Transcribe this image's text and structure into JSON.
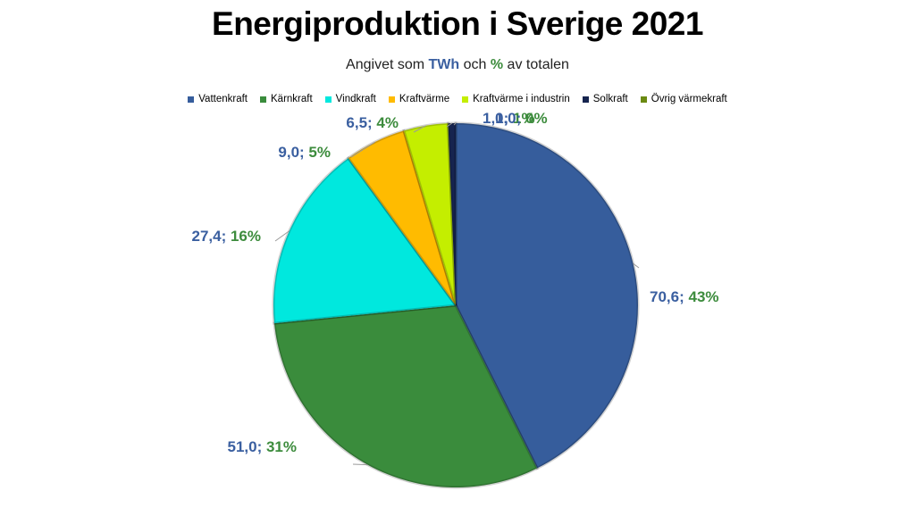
{
  "title": "Energiproduktion i Sverige 2021",
  "subtitle": {
    "prefix": "Angivet som ",
    "unit": "TWh",
    "middle": " och ",
    "pct": "%",
    "suffix": " av totalen"
  },
  "colors": {
    "value_label": "#3a5fa0",
    "pct_label": "#3d8c3d"
  },
  "chart_data": {
    "type": "pie",
    "title": "Energiproduktion i Sverige 2021",
    "subtitle": "Angivet som TWh och % av totalen",
    "legend_position": "top",
    "slices": [
      {
        "name": "Vattenkraft",
        "value": 70.6,
        "percent": 43,
        "label": "70,6",
        "pct_label": "43%",
        "color": "#365d9c"
      },
      {
        "name": "Kärnkraft",
        "value": 51.0,
        "percent": 31,
        "label": "51,0",
        "pct_label": "31%",
        "color": "#3a8c3c"
      },
      {
        "name": "Vindkraft",
        "value": 27.4,
        "percent": 16,
        "label": "27,4",
        "pct_label": "16%",
        "color": "#00e8de"
      },
      {
        "name": "Kraftvärme",
        "value": 9.0,
        "percent": 5,
        "label": "9,0",
        "pct_label": "5%",
        "color": "#ffbb00"
      },
      {
        "name": "Kraftvärme i industrin",
        "value": 6.5,
        "percent": 4,
        "label": "6,5",
        "pct_label": "4%",
        "color": "#c4ee00"
      },
      {
        "name": "Solkraft",
        "value": 1.1,
        "percent": 1,
        "label": "1,1",
        "pct_label": "1%",
        "color": "#16244f"
      },
      {
        "name": "Övrig värmekraft",
        "value": 0.0,
        "percent": 0,
        "label": "0,0",
        "pct_label": "0%",
        "color": "#6b8a12"
      }
    ]
  }
}
